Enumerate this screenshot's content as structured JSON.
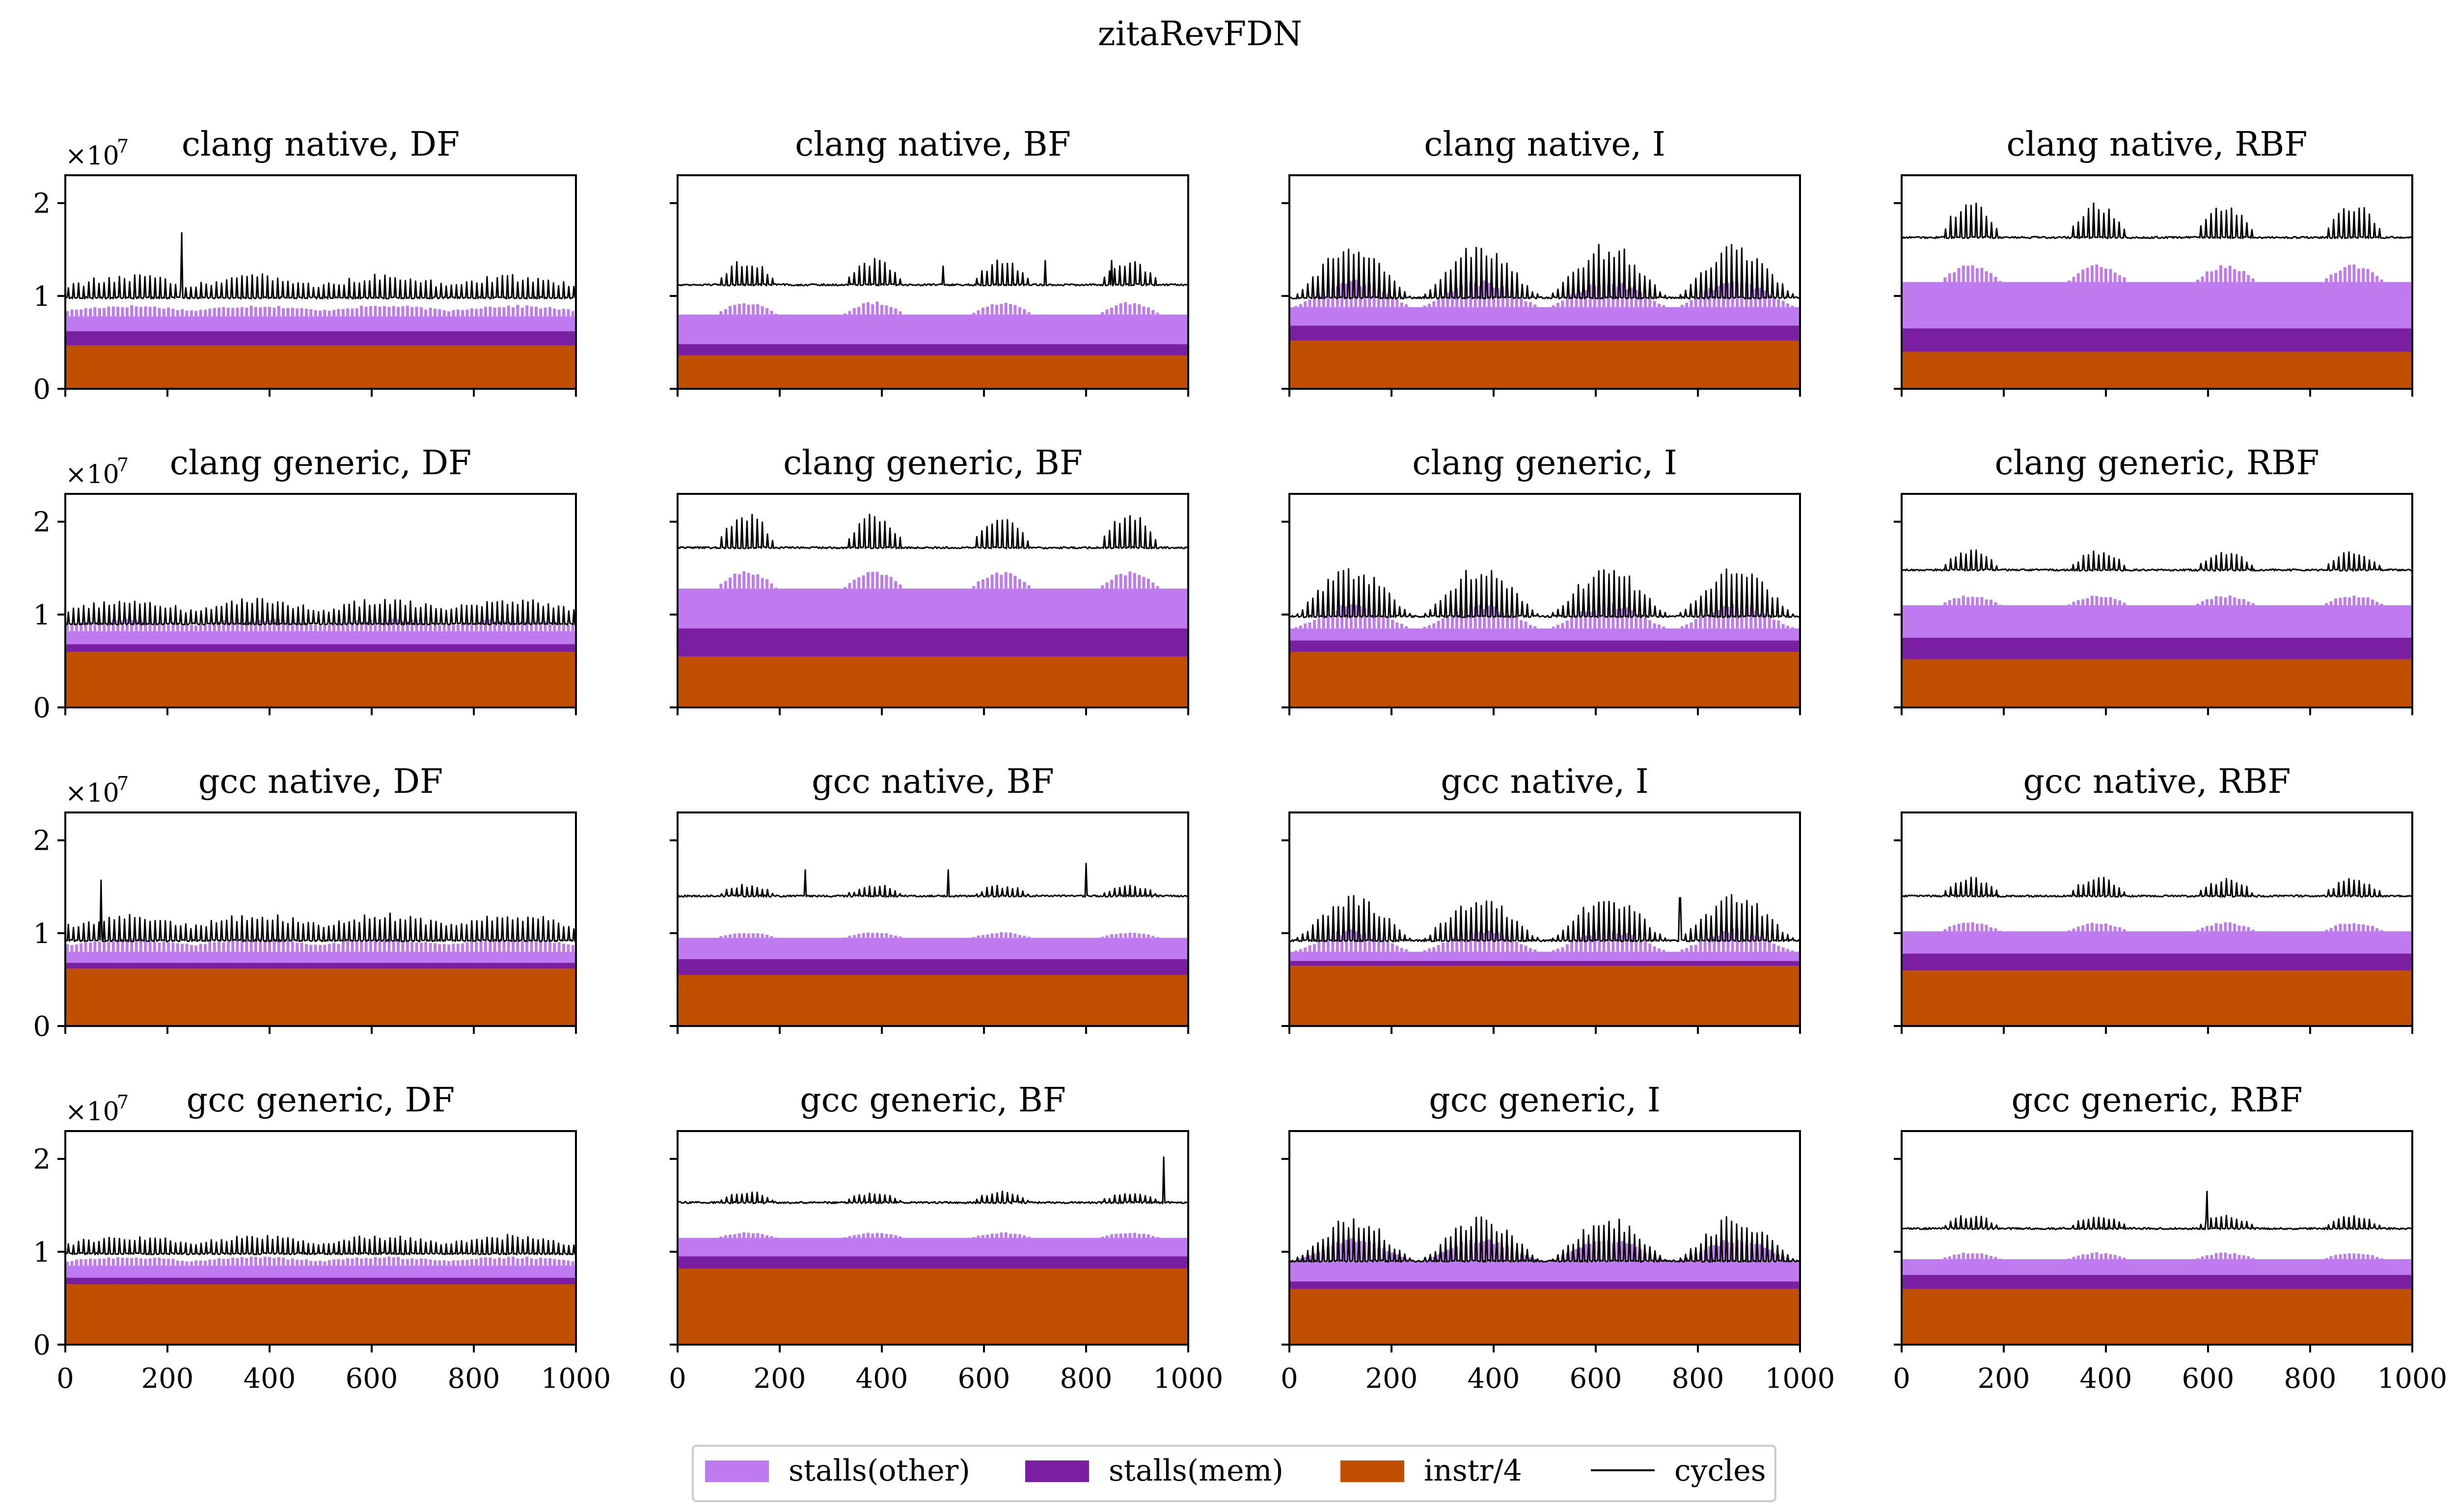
{
  "chart_data": {
    "type": "area",
    "title": "zitaRevFDN",
    "x_ticks": [
      0,
      200,
      400,
      600,
      800,
      1000
    ],
    "y_ticks": [
      0,
      1,
      2
    ],
    "xlim": [
      0,
      1000
    ],
    "ylim": [
      0,
      2.3
    ],
    "y_scale_label": "×10",
    "y_scale_exponent": "7",
    "legend": [
      {
        "key": "stalls_other",
        "label": "stalls(other)",
        "color": "#bf7af0",
        "kind": "patch"
      },
      {
        "key": "stalls_mem",
        "label": "stalls(mem)",
        "color": "#7b1fa2",
        "kind": "patch"
      },
      {
        "key": "instr",
        "label": "instr/4",
        "color": "#c05000",
        "kind": "patch"
      },
      {
        "key": "cycles",
        "label": "cycles",
        "color": "#000000",
        "kind": "line"
      }
    ],
    "panels": [
      {
        "title": "clang native, DF",
        "instr": 0.47,
        "stalls_mem": 0.62,
        "stalls_other": 0.78,
        "cycles": 0.98,
        "spike_amp": 0.25,
        "pattern": "dense",
        "outliers": [
          [
            228,
            1.68
          ]
        ]
      },
      {
        "title": "clang native, BF",
        "instr": 0.36,
        "stalls_mem": 0.48,
        "stalls_other": 0.8,
        "cycles": 1.12,
        "spike_amp": 0.28,
        "pattern": "groups",
        "outliers": [
          [
            520,
            1.32
          ],
          [
            720,
            1.38
          ],
          [
            850,
            1.38
          ]
        ]
      },
      {
        "title": "clang native, I",
        "instr": 0.52,
        "stalls_mem": 0.68,
        "stalls_other": 0.88,
        "cycles": 0.98,
        "spike_amp": 0.6,
        "pattern": "waves",
        "outliers": []
      },
      {
        "title": "clang native, RBF",
        "instr": 0.4,
        "stalls_mem": 0.65,
        "stalls_other": 1.15,
        "cycles": 1.63,
        "spike_amp": 0.38,
        "pattern": "groups",
        "outliers": []
      },
      {
        "title": "clang generic, DF",
        "instr": 0.6,
        "stalls_mem": 0.68,
        "stalls_other": 0.82,
        "cycles": 0.9,
        "spike_amp": 0.28,
        "pattern": "dense",
        "outliers": []
      },
      {
        "title": "clang generic, BF",
        "instr": 0.55,
        "stalls_mem": 0.85,
        "stalls_other": 1.28,
        "cycles": 1.72,
        "spike_amp": 0.38,
        "pattern": "groups",
        "outliers": []
      },
      {
        "title": "clang generic, I",
        "instr": 0.6,
        "stalls_mem": 0.72,
        "stalls_other": 0.85,
        "cycles": 0.98,
        "spike_amp": 0.55,
        "pattern": "waves",
        "outliers": []
      },
      {
        "title": "clang generic, RBF",
        "instr": 0.52,
        "stalls_mem": 0.75,
        "stalls_other": 1.1,
        "cycles": 1.48,
        "spike_amp": 0.22,
        "pattern": "groups",
        "outliers": []
      },
      {
        "title": "gcc native, DF",
        "instr": 0.62,
        "stalls_mem": 0.68,
        "stalls_other": 0.8,
        "cycles": 0.92,
        "spike_amp": 0.3,
        "pattern": "dense",
        "outliers": [
          [
            70,
            1.57
          ]
        ]
      },
      {
        "title": "gcc native, BF",
        "instr": 0.55,
        "stalls_mem": 0.72,
        "stalls_other": 0.95,
        "cycles": 1.4,
        "spike_amp": 0.12,
        "pattern": "groups",
        "outliers": [
          [
            250,
            1.68
          ],
          [
            530,
            1.68
          ],
          [
            800,
            1.75
          ]
        ]
      },
      {
        "title": "gcc native, I",
        "instr": 0.65,
        "stalls_mem": 0.7,
        "stalls_other": 0.8,
        "cycles": 0.92,
        "spike_amp": 0.5,
        "pattern": "waves",
        "outliers": [
          [
            765,
            1.38
          ]
        ]
      },
      {
        "title": "gcc native, RBF",
        "instr": 0.6,
        "stalls_mem": 0.78,
        "stalls_other": 1.02,
        "cycles": 1.4,
        "spike_amp": 0.2,
        "pattern": "groups",
        "outliers": []
      },
      {
        "title": "gcc generic, DF",
        "instr": 0.65,
        "stalls_mem": 0.72,
        "stalls_other": 0.85,
        "cycles": 0.98,
        "spike_amp": 0.2,
        "pattern": "dense",
        "outliers": []
      },
      {
        "title": "gcc generic, BF",
        "instr": 0.82,
        "stalls_mem": 0.95,
        "stalls_other": 1.15,
        "cycles": 1.53,
        "spike_amp": 0.12,
        "pattern": "groups",
        "outliers": [
          [
            952,
            2.02
          ]
        ]
      },
      {
        "title": "gcc generic, I",
        "instr": 0.6,
        "stalls_mem": 0.68,
        "stalls_other": 0.9,
        "cycles": 0.9,
        "spike_amp": 0.5,
        "pattern": "waves",
        "outliers": []
      },
      {
        "title": "gcc generic, RBF",
        "instr": 0.6,
        "stalls_mem": 0.75,
        "stalls_other": 0.92,
        "cycles": 1.25,
        "spike_amp": 0.15,
        "pattern": "groups",
        "outliers": [
          [
            598,
            1.65
          ]
        ]
      }
    ]
  }
}
